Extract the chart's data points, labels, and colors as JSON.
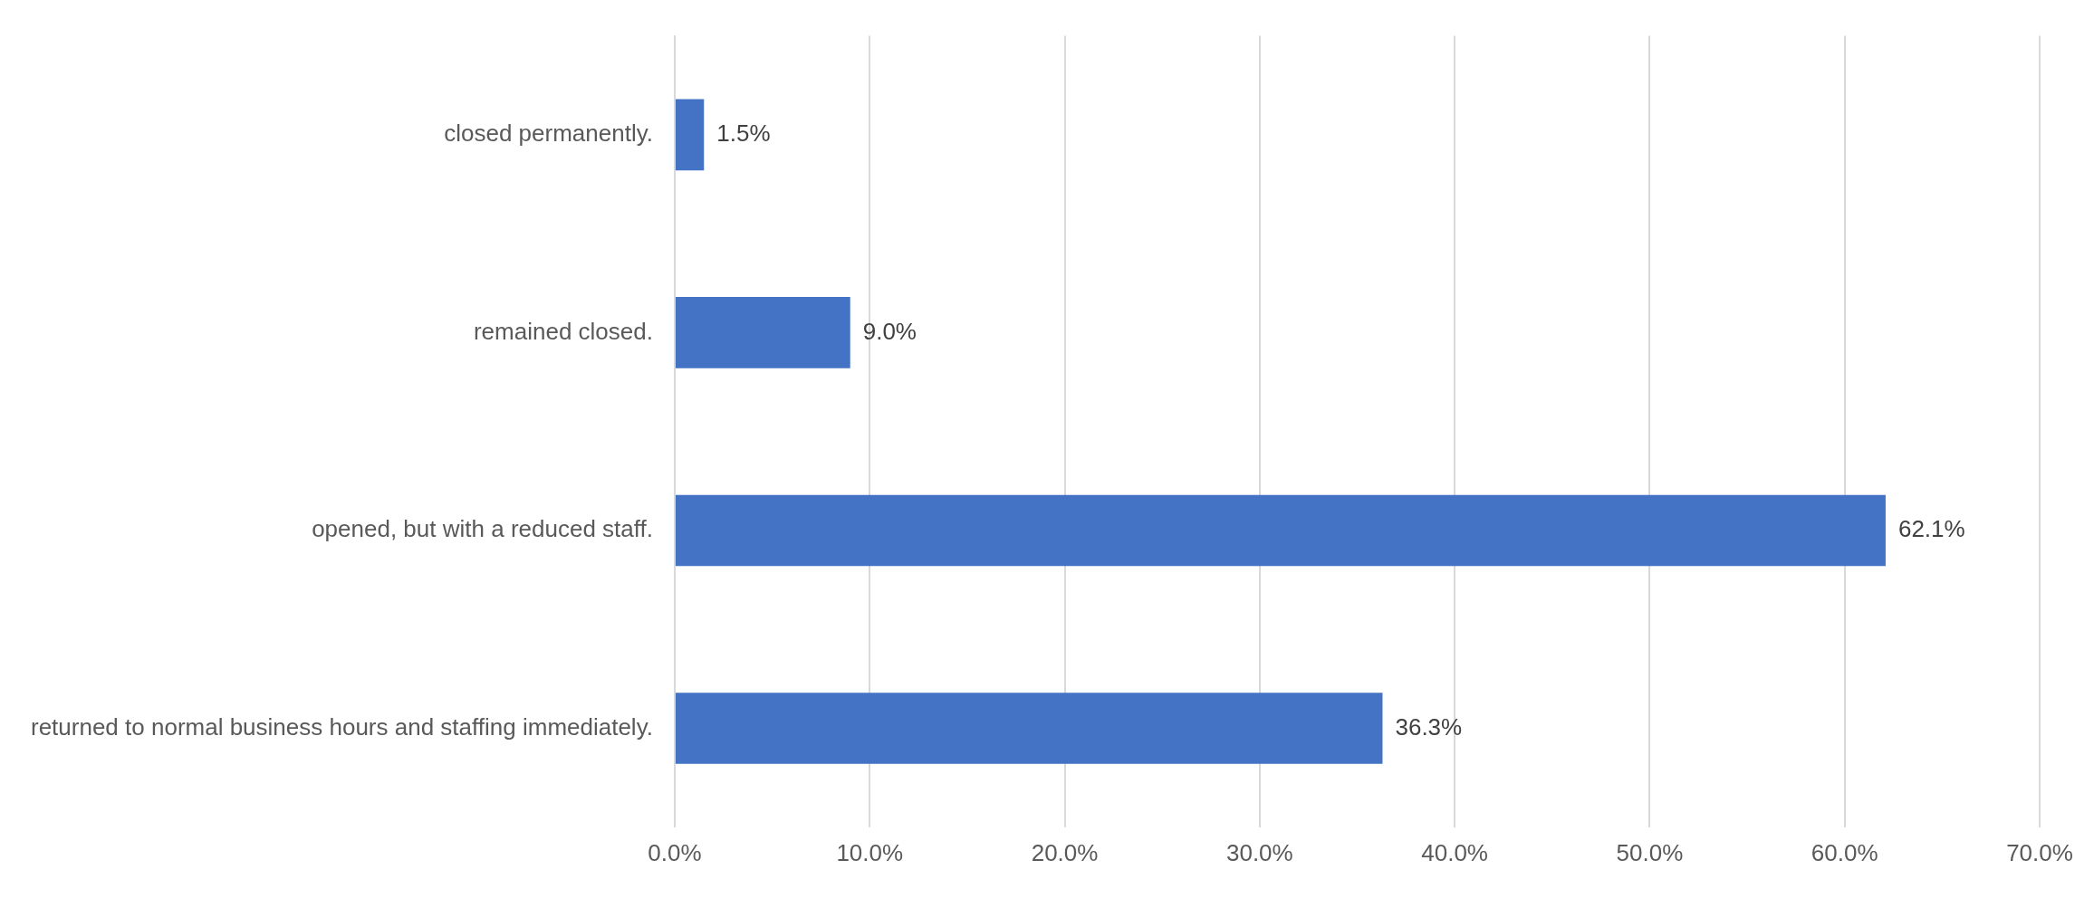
{
  "chart_data": {
    "type": "bar",
    "orientation": "horizontal",
    "categories": [
      "closed permanently.",
      "remained closed.",
      "opened, but with a reduced staff.",
      "returned to normal business hours and staffing immediately."
    ],
    "values": [
      1.5,
      9.0,
      62.1,
      36.3
    ],
    "value_labels": [
      "1.5%",
      "9.0%",
      "62.1%",
      "36.3%"
    ],
    "color": "#4472c4",
    "xlim": [
      0,
      70
    ],
    "xticks": [
      {
        "value": 0,
        "label": "0.0%"
      },
      {
        "value": 10,
        "label": "10.0%"
      },
      {
        "value": 20,
        "label": "20.0%"
      },
      {
        "value": 30,
        "label": "30.0%"
      },
      {
        "value": 40,
        "label": "40.0%"
      },
      {
        "value": 50,
        "label": "50.0%"
      },
      {
        "value": 60,
        "label": "60.0%"
      },
      {
        "value": 70,
        "label": "70.0%"
      }
    ],
    "grid": "x"
  }
}
